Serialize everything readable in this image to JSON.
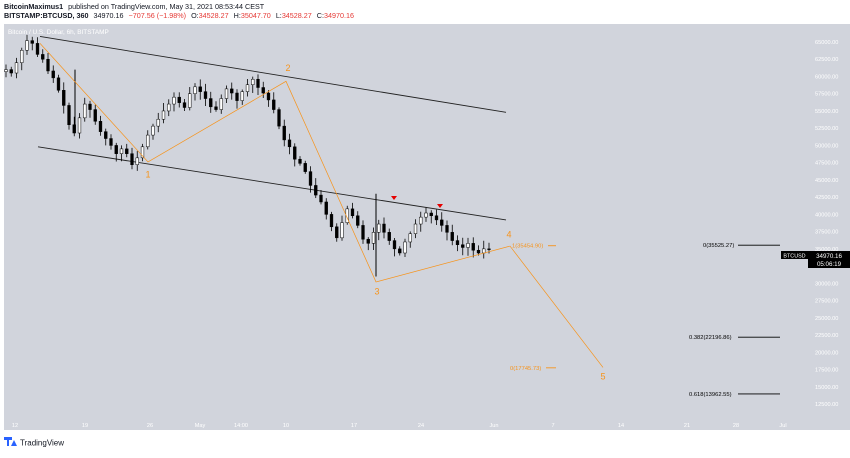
{
  "header": {
    "author": "BitcoinMaximus1",
    "published": "published on TradingView.com, May 31, 2021 08:53:44 CEST",
    "symbol_line": "BITSTAMP:BTCUSD, 360",
    "last": "34970.16",
    "change": "−707.56 (−1.98%)",
    "o_label": "O:",
    "o_val": "34528.27",
    "h_label": "H:",
    "h_val": "35047.70",
    "l_label": "L:",
    "l_val": "34528.27",
    "c_label": "C:",
    "c_val": "34970.16"
  },
  "pane_label": "Bitcoin / U.S. Dollar, 6h, BITSTAMP",
  "logo_text": "TradingView",
  "colors": {
    "background": "#d1d4dc",
    "candle": "#000000",
    "wave": "#f7931a",
    "red_marker": "#e60000",
    "change_red": "#e53935"
  },
  "chart_data": {
    "type": "candlestick",
    "ylim": [
      11500,
      68500
    ],
    "yticks": [
      "65000.00",
      "62500.00",
      "60000.00",
      "57500.00",
      "55000.00",
      "52500.00",
      "50000.00",
      "47500.00",
      "45000.00",
      "42500.00",
      "40000.00",
      "37500.00",
      "35000.00",
      "32500.00",
      "30000.00",
      "27500.00",
      "25000.00",
      "22500.00",
      "20000.00",
      "17500.00",
      "15000.00",
      "12500.00"
    ],
    "xticks": [
      "12",
      "19",
      "26",
      "May",
      "14:00",
      "10",
      "17",
      "24",
      "Jun",
      "7",
      "14",
      "21",
      "28",
      "Jul"
    ],
    "price_label": {
      "symbol": "BTCUSD",
      "price": "34970.16",
      "countdown": "05:06:19"
    },
    "waves": [
      {
        "label": "1",
        "price": 47500
      },
      {
        "label": "2",
        "price": 59600
      },
      {
        "label": "3",
        "price": 30000
      },
      {
        "label": "4",
        "price": 35454.9
      },
      {
        "label": "5",
        "price": 17745.73
      }
    ],
    "fib_levels": [
      {
        "text": "0(35525.27)",
        "price": 35525.27
      },
      {
        "text": "0.382(22196.86)",
        "price": 22196.86
      },
      {
        "text": "0.618(13962.55)",
        "price": 13962.55
      },
      {
        "text": "1(35454.90)",
        "price": 35454.9
      },
      {
        "text": "0(17745.73)",
        "price": 17745.73
      }
    ],
    "channel": {
      "upper": [
        [
          65800,
          54800
        ]
      ],
      "lower": [
        [
          49800,
          39200
        ]
      ]
    },
    "close_path": [
      61000,
      60500,
      62000,
      63800,
      65200,
      64800,
      63200,
      62500,
      60800,
      59800,
      58000,
      55800,
      53000,
      51800,
      54000,
      56000,
      55200,
      53500,
      52000,
      51000,
      50000,
      48800,
      49500,
      48800,
      47200,
      48200,
      49800,
      51500,
      52800,
      53800,
      55000,
      56000,
      57000,
      56200,
      55500,
      57500,
      58500,
      57800,
      56800,
      55600,
      55200,
      56800,
      58200,
      57600,
      56500,
      57800,
      58800,
      59600,
      58400,
      57600,
      56600,
      55200,
      52800,
      50800,
      49800,
      48000,
      47400,
      46200,
      44200,
      42800,
      41800,
      40000,
      38200,
      36600,
      38800,
      40800,
      39800,
      38400,
      36400,
      35800,
      37400,
      38600,
      37400,
      36200,
      35000,
      34400,
      36000,
      37200,
      38600,
      39600,
      40200,
      39800,
      39200,
      38400,
      37400,
      36200,
      35600,
      35200,
      35800,
      34800,
      34400,
      35000,
      34970
    ]
  }
}
